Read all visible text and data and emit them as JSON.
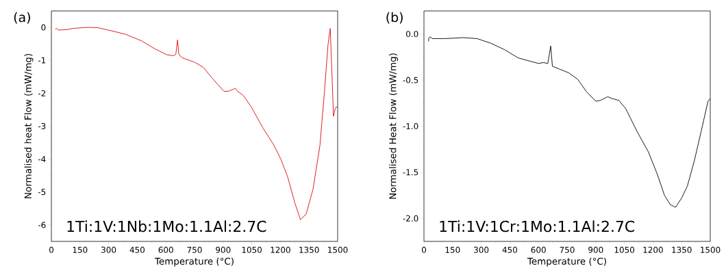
{
  "chart_data": [
    {
      "type": "line",
      "title": "(a)",
      "xlabel": "Temperature (°C)",
      "ylabel": "Normalised heat Flow (mW/mg)",
      "annotations": [
        "1Ti:1V:1Nb:1Mo:1.1Al:2.7C"
      ],
      "xlim": [
        0,
        1500
      ],
      "ylim": [
        -6.5,
        0.5
      ],
      "xticks": [
        0,
        150,
        300,
        450,
        600,
        750,
        900,
        1050,
        1200,
        1350,
        1500
      ],
      "yticks": [
        -6,
        -5,
        -4,
        -3,
        -2,
        -1,
        0
      ],
      "marker": "none",
      "line_style": "solid",
      "series": [
        {
          "color": "#e02020",
          "x": [
            20,
            28,
            36,
            78,
            114,
            186,
            245,
            305,
            389,
            473,
            545,
            605,
            641,
            652,
            661,
            668,
            688,
            748,
            796,
            844,
            904,
            928,
            964,
            976,
            1006,
            1048,
            1107,
            1167,
            1203,
            1239,
            1275,
            1305,
            1335,
            1371,
            1407,
            1431,
            1449,
            1461,
            1469,
            1478,
            1486,
            1492,
            1500
          ],
          "values": [
            -0.05,
            -0.03,
            -0.08,
            -0.07,
            -0.03,
            0.0,
            -0.01,
            -0.09,
            -0.21,
            -0.41,
            -0.66,
            -0.83,
            -0.86,
            -0.82,
            -0.38,
            -0.83,
            -0.93,
            -1.05,
            -1.21,
            -1.55,
            -1.94,
            -1.94,
            -1.85,
            -1.94,
            -2.07,
            -2.42,
            -3.04,
            -3.59,
            -4.01,
            -4.56,
            -5.32,
            -5.84,
            -5.67,
            -4.91,
            -3.59,
            -1.94,
            -0.55,
            -0.03,
            -1.24,
            -2.7,
            -2.49,
            -2.42,
            -2.42
          ]
        }
      ]
    },
    {
      "type": "line",
      "title": "(b)",
      "xlabel": "Temperature (°C)",
      "ylabel": "Normalised Heat Flow (mW/mg)",
      "annotations": [
        "1Ti:1V:1Cr:1Mo:1.1Al:2.7C"
      ],
      "xlim": [
        0,
        1500
      ],
      "ylim": [
        -2.25,
        0.25
      ],
      "xticks": [
        0,
        150,
        300,
        450,
        600,
        750,
        900,
        1050,
        1200,
        1350,
        1500
      ],
      "yticks": [
        {
          "value": -2,
          "label": "-2.0"
        },
        {
          "value": -1.5,
          "label": "-1.5"
        },
        {
          "value": -1,
          "label": "-1.0"
        },
        {
          "value": -0.5,
          "label": "-0.5"
        },
        {
          "value": 0,
          "label": "0.0"
        }
      ],
      "marker": "none",
      "line_style": "solid",
      "series": [
        {
          "color": "#1a1a1a",
          "x": [
            24,
            26,
            32,
            44,
            110,
            206,
            278,
            350,
            422,
            494,
            565,
            601,
            625,
            649,
            664,
            673,
            709,
            757,
            805,
            853,
            901,
            925,
            963,
            985,
            1021,
            1057,
            1117,
            1176,
            1224,
            1260,
            1290,
            1318,
            1350,
            1380,
            1416,
            1452,
            1488,
            1500
          ],
          "values": [
            -0.08,
            -0.04,
            -0.03,
            -0.05,
            -0.05,
            -0.04,
            -0.05,
            -0.1,
            -0.17,
            -0.26,
            -0.3,
            -0.32,
            -0.31,
            -0.32,
            -0.13,
            -0.35,
            -0.38,
            -0.42,
            -0.49,
            -0.63,
            -0.73,
            -0.72,
            -0.68,
            -0.7,
            -0.72,
            -0.81,
            -1.06,
            -1.28,
            -1.53,
            -1.75,
            -1.85,
            -1.88,
            -1.78,
            -1.65,
            -1.38,
            -1.06,
            -0.73,
            -0.7
          ]
        }
      ]
    }
  ]
}
